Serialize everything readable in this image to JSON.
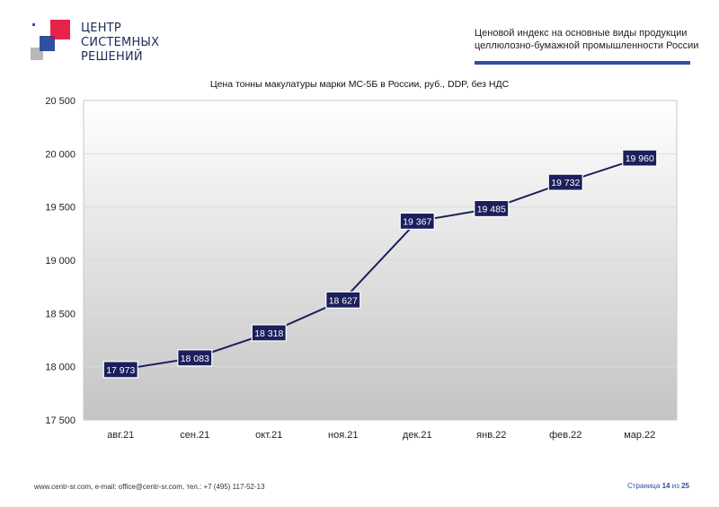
{
  "logo": {
    "lines": [
      "ЦЕНТР",
      "СИСТЕМНЫХ",
      "РЕШЕНИЙ"
    ],
    "colors": {
      "red": "#e8234a",
      "blue": "#2f4fa0",
      "gray": "#b8b8b8",
      "dark": "#1e2a5a"
    }
  },
  "header": {
    "line1": "Ценовой индекс на основные виды продукции",
    "line2": "целлюлозно-бумажной промышленности России",
    "accent": "#2f4fa0"
  },
  "chart_data": {
    "type": "line",
    "title": "Цена тонны макулатуры марки МС-5Б в России, руб., DDP, без НДС",
    "categories": [
      "авг.21",
      "сен.21",
      "окт.21",
      "ноя.21",
      "дек.21",
      "янв.22",
      "фев.22",
      "мар.22"
    ],
    "values": [
      17973,
      18083,
      18318,
      18627,
      19367,
      19485,
      19732,
      19960
    ],
    "data_labels": [
      "17 973",
      "18 083",
      "18 318",
      "18 627",
      "19 367",
      "19 485",
      "19 732",
      "19 960"
    ],
    "y_ticks": [
      "17 500",
      "18 000",
      "18 500",
      "19 000",
      "19 500",
      "20 000",
      "20 500"
    ],
    "ylim": [
      17500,
      20500
    ],
    "grid": true,
    "line_color": "#1b1f5c",
    "label_bg": "#1b1f5c"
  },
  "footer": {
    "contacts": "www.centr-sr.com, e-mail: office@centr-sr.com, тел.: +7 (495) 117-52-13",
    "page_word": "Страница",
    "page_current": "14",
    "page_of": "из",
    "page_total": "25"
  }
}
